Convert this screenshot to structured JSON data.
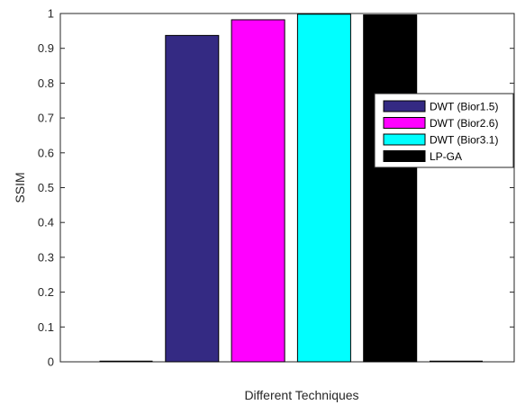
{
  "chart_data": {
    "type": "bar",
    "title": "",
    "xlabel": "Different Techniques",
    "ylabel": "SSIM",
    "ylim": [
      0,
      1
    ],
    "yticks": [
      0,
      0.1,
      0.2,
      0.3,
      0.4,
      0.5,
      0.6,
      0.7,
      0.8,
      0.9,
      1
    ],
    "ytick_labels": [
      "0",
      "0.1",
      "0.2",
      "0.3",
      "0.4",
      "0.5",
      "0.6",
      "0.7",
      "0.8",
      "0.9",
      "1"
    ],
    "grid": false,
    "legend_position": "right",
    "series": [
      {
        "name": "DWT (Bior1.5)",
        "values": [
          0.937
        ],
        "color": "#342A83"
      },
      {
        "name": "DWT (Bior2.6)",
        "values": [
          0.982
        ],
        "color": "#FF00FF"
      },
      {
        "name": "DWT (Bior3.1)",
        "values": [
          0.998
        ],
        "color": "#00FFFF"
      },
      {
        "name": "LP-GA",
        "values": [
          0.996
        ],
        "color": "#000000"
      }
    ]
  }
}
